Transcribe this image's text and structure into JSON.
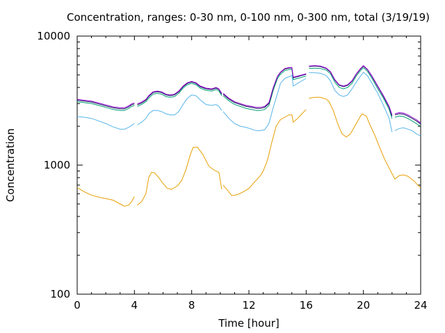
{
  "chart_data": {
    "type": "line",
    "title": "Concentration, ranges: 0-30 nm, 0-100 nm, 0-300 nm, total (3/19/19)",
    "xlabel": "Time [hour]",
    "ylabel": "Concentration",
    "xlim": [
      0,
      24
    ],
    "ylim": [
      100,
      10000
    ],
    "yscale": "log",
    "xticks": [
      "0",
      "4",
      "8",
      "12",
      "16",
      "20",
      "24"
    ],
    "yticks": [
      "100",
      "1000",
      "10000"
    ],
    "grid": false,
    "legend": "none",
    "series": [
      {
        "color": "#e69f00",
        "x": [
          0,
          0.5,
          1,
          1.5,
          2,
          2.5,
          3,
          3.3,
          3.6,
          3.8,
          4.0,
          4.2,
          4.5,
          4.8,
          5.0,
          5.2,
          5.4,
          5.7,
          6.0,
          6.3,
          6.6,
          7.0,
          7.3,
          7.6,
          7.9,
          8.1,
          8.4,
          8.8,
          9.2,
          9.6,
          9.9,
          10.1,
          10.2,
          10.5,
          10.8,
          11.2,
          11.6,
          12.0,
          12.4,
          12.8,
          13.0,
          13.3,
          13.6,
          13.9,
          14.2,
          14.5,
          14.8,
          15.0,
          15.1,
          15.4,
          15.7,
          16.0,
          16.1,
          16.2,
          16.6,
          17.0,
          17.4,
          17.6,
          17.9,
          18.2,
          18.5,
          18.8,
          19.1,
          19.4,
          19.7,
          19.9,
          20.2,
          20.5,
          20.8,
          21.1,
          21.5,
          21.9,
          22.2,
          22.5,
          22.8,
          23.1,
          23.5,
          23.8,
          24
        ],
        "y": [
          670,
          620,
          585,
          565,
          550,
          535,
          500,
          480,
          490,
          520,
          570,
          490,
          520,
          600,
          800,
          880,
          870,
          800,
          720,
          660,
          650,
          690,
          760,
          920,
          1200,
          1370,
          1380,
          1200,
          980,
          910,
          880,
          650,
          700,
          640,
          580,
          590,
          620,
          660,
          740,
          830,
          900,
          1100,
          1500,
          2000,
          2250,
          2350,
          2450,
          2450,
          2150,
          2300,
          2500,
          2700,
          2900,
          3300,
          3350,
          3350,
          3250,
          3100,
          2650,
          2100,
          1750,
          1650,
          1750,
          2000,
          2300,
          2500,
          2400,
          2000,
          1700,
          1400,
          1100,
          900,
          780,
          830,
          840,
          820,
          760,
          700,
          670
        ]
      },
      {
        "color": "#56b4e9",
        "x": [
          0,
          0.5,
          1,
          1.5,
          2,
          2.5,
          3,
          3.3,
          3.6,
          3.8,
          4.0,
          4.2,
          4.5,
          4.8,
          5.0,
          5.3,
          5.6,
          5.9,
          6.2,
          6.5,
          6.8,
          7.1,
          7.4,
          7.7,
          8.0,
          8.3,
          8.6,
          9.0,
          9.4,
          9.7,
          9.9,
          10.1,
          10.2,
          10.6,
          11.0,
          11.4,
          11.8,
          12.2,
          12.5,
          12.8,
          13.1,
          13.4,
          13.7,
          14.0,
          14.2,
          14.5,
          14.8,
          15.0,
          15.1,
          15.4,
          15.7,
          16.0,
          16.1,
          16.2,
          16.6,
          17.0,
          17.4,
          17.7,
          18.0,
          18.3,
          18.6,
          18.9,
          19.2,
          19.5,
          19.8,
          20.0,
          20.3,
          20.6,
          21.0,
          21.4,
          21.8,
          22.0,
          22.2,
          22.5,
          22.8,
          23.1,
          23.4,
          23.7,
          24
        ],
        "y": [
          2380,
          2350,
          2300,
          2200,
          2100,
          1980,
          1900,
          1900,
          1960,
          2030,
          2100,
          2050,
          2150,
          2300,
          2500,
          2650,
          2650,
          2600,
          2500,
          2450,
          2450,
          2600,
          2950,
          3300,
          3500,
          3450,
          3200,
          2950,
          2900,
          2950,
          2850,
          2650,
          2600,
          2300,
          2100,
          2000,
          1960,
          1900,
          1850,
          1850,
          1880,
          2100,
          2800,
          3600,
          4300,
          4700,
          4850,
          4950,
          4100,
          4300,
          4500,
          4700,
          4800,
          5200,
          5200,
          5150,
          4950,
          4500,
          3800,
          3500,
          3400,
          3500,
          3900,
          4400,
          4900,
          5250,
          4900,
          4300,
          3600,
          2900,
          2300,
          1800,
          1850,
          1920,
          1950,
          1900,
          1850,
          1750,
          1680
        ]
      },
      {
        "color": "#009e73",
        "x": [
          0,
          0.5,
          1,
          1.5,
          2,
          2.5,
          3,
          3.3,
          3.6,
          3.8,
          4.0,
          4.2,
          4.5,
          4.8,
          5.0,
          5.3,
          5.6,
          5.9,
          6.2,
          6.5,
          6.8,
          7.1,
          7.4,
          7.7,
          8.0,
          8.3,
          8.6,
          9.0,
          9.4,
          9.7,
          9.9,
          10.1,
          10.2,
          10.6,
          11.0,
          11.4,
          11.8,
          12.2,
          12.5,
          12.8,
          13.1,
          13.4,
          13.7,
          14.0,
          14.2,
          14.5,
          14.8,
          15.0,
          15.1,
          15.4,
          15.7,
          16.0,
          16.1,
          16.2,
          16.6,
          17.0,
          17.4,
          17.7,
          18.0,
          18.3,
          18.6,
          18.9,
          19.2,
          19.5,
          19.8,
          20.0,
          20.3,
          20.6,
          21.0,
          21.4,
          21.8,
          22.0,
          22.2,
          22.5,
          22.8,
          23.1,
          23.4,
          23.7,
          24
        ],
        "y": [
          3100,
          3050,
          3000,
          2900,
          2800,
          2700,
          2650,
          2650,
          2750,
          2850,
          2900,
          2850,
          2950,
          3100,
          3300,
          3550,
          3600,
          3550,
          3400,
          3350,
          3400,
          3600,
          3950,
          4200,
          4300,
          4200,
          3950,
          3800,
          3750,
          3850,
          3750,
          3450,
          3450,
          3150,
          2950,
          2850,
          2750,
          2700,
          2650,
          2650,
          2700,
          2900,
          3800,
          4700,
          5050,
          5400,
          5500,
          5500,
          4600,
          4700,
          4800,
          4900,
          5100,
          5600,
          5650,
          5600,
          5450,
          5100,
          4400,
          4000,
          3900,
          4000,
          4300,
          4900,
          5400,
          5700,
          5300,
          4700,
          3900,
          3300,
          2700,
          2300,
          2350,
          2400,
          2380,
          2300,
          2200,
          2100,
          2000
        ]
      },
      {
        "color": "#1a1a60",
        "x": [
          0,
          0.5,
          1,
          1.5,
          2,
          2.5,
          3,
          3.3,
          3.6,
          3.8,
          4.0,
          4.2,
          4.5,
          4.8,
          5.0,
          5.3,
          5.6,
          5.9,
          6.2,
          6.5,
          6.8,
          7.1,
          7.4,
          7.7,
          8.0,
          8.3,
          8.6,
          9.0,
          9.4,
          9.7,
          9.9,
          10.1,
          10.2,
          10.6,
          11.0,
          11.4,
          11.8,
          12.2,
          12.5,
          12.8,
          13.1,
          13.4,
          13.7,
          14.0,
          14.2,
          14.5,
          14.8,
          15.0,
          15.1,
          15.4,
          15.7,
          16.0,
          16.1,
          16.2,
          16.6,
          17.0,
          17.4,
          17.7,
          18.0,
          18.3,
          18.6,
          18.9,
          19.2,
          19.5,
          19.8,
          20.0,
          20.3,
          20.6,
          21.0,
          21.4,
          21.8,
          22.0,
          22.2,
          22.5,
          22.8,
          23.1,
          23.4,
          23.7,
          24
        ],
        "y": [
          3180,
          3130,
          3080,
          2980,
          2880,
          2780,
          2730,
          2730,
          2830,
          2930,
          2980,
          2930,
          3030,
          3180,
          3400,
          3650,
          3700,
          3650,
          3500,
          3450,
          3500,
          3700,
          4050,
          4300,
          4400,
          4300,
          4050,
          3900,
          3850,
          3950,
          3850,
          3550,
          3550,
          3250,
          3050,
          2950,
          2850,
          2800,
          2750,
          2750,
          2800,
          3000,
          3950,
          4850,
          5200,
          5550,
          5650,
          5650,
          4750,
          4850,
          4950,
          5050,
          5250,
          5800,
          5850,
          5800,
          5600,
          5250,
          4550,
          4150,
          4050,
          4150,
          4450,
          5050,
          5550,
          5850,
          5450,
          4850,
          4050,
          3400,
          2800,
          2400,
          2450,
          2500,
          2480,
          2400,
          2300,
          2200,
          2080
        ]
      },
      {
        "color": "#9400d3",
        "x": [
          0,
          0.5,
          1,
          1.5,
          2,
          2.5,
          3,
          3.3,
          3.6,
          3.8,
          4.0,
          4.2,
          4.5,
          4.8,
          5.0,
          5.3,
          5.6,
          5.9,
          6.2,
          6.5,
          6.8,
          7.1,
          7.4,
          7.7,
          8.0,
          8.3,
          8.6,
          9.0,
          9.4,
          9.7,
          9.9,
          10.1,
          10.2,
          10.6,
          11.0,
          11.4,
          11.8,
          12.2,
          12.5,
          12.8,
          13.1,
          13.4,
          13.7,
          14.0,
          14.2,
          14.5,
          14.8,
          15.0,
          15.1,
          15.4,
          15.7,
          16.0,
          16.1,
          16.2,
          16.6,
          17.0,
          17.4,
          17.7,
          18.0,
          18.3,
          18.6,
          18.9,
          19.2,
          19.5,
          19.8,
          20.0,
          20.3,
          20.6,
          21.0,
          21.4,
          21.8,
          22.0,
          22.2,
          22.5,
          22.8,
          23.1,
          23.4,
          23.7,
          24
        ],
        "y": [
          3230,
          3180,
          3130,
          3030,
          2930,
          2830,
          2780,
          2780,
          2880,
          2980,
          3030,
          2980,
          3080,
          3230,
          3450,
          3700,
          3750,
          3700,
          3550,
          3500,
          3550,
          3750,
          4100,
          4350,
          4450,
          4350,
          4100,
          3950,
          3900,
          4000,
          3900,
          3600,
          3600,
          3300,
          3100,
          3000,
          2900,
          2850,
          2800,
          2800,
          2850,
          3050,
          4000,
          4900,
          5250,
          5600,
          5700,
          5700,
          4800,
          4900,
          5000,
          5100,
          5300,
          5850,
          5900,
          5850,
          5650,
          5300,
          4600,
          4200,
          4100,
          4200,
          4500,
          5100,
          5600,
          5900,
          5500,
          4900,
          4100,
          3450,
          2850,
          2450,
          2500,
          2550,
          2530,
          2450,
          2350,
          2250,
          2120
        ]
      }
    ]
  }
}
